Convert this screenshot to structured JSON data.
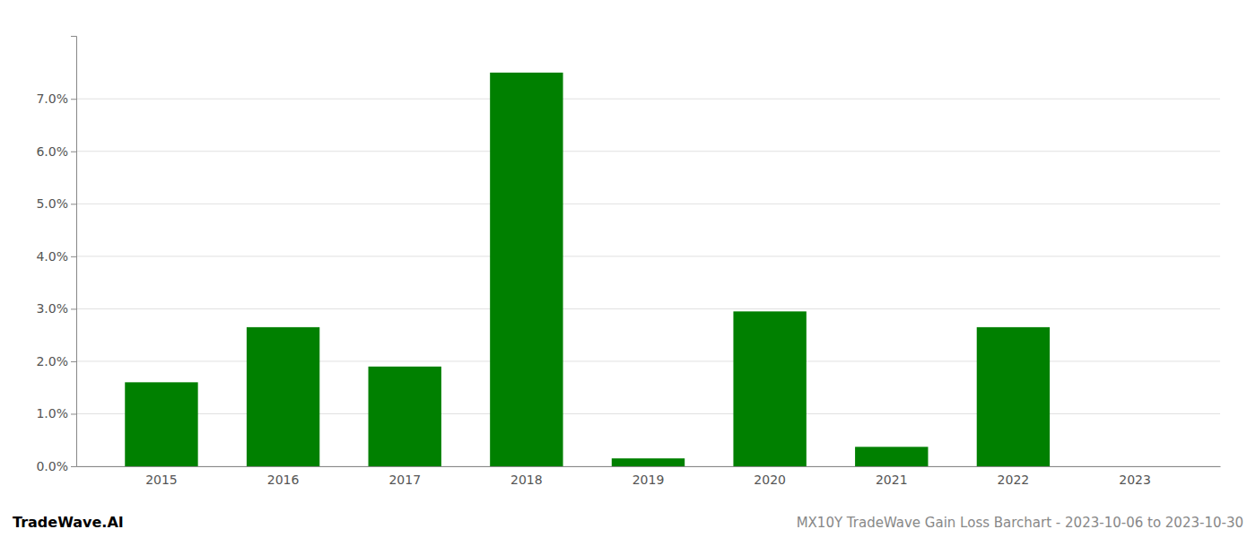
{
  "chart_data": {
    "type": "bar",
    "title": "MX10Y TradeWave Gain Loss Barchart - 2023-10-06 to 2023-10-30",
    "annotations": [
      "TradeWave.AI"
    ],
    "categories": [
      "2015",
      "2016",
      "2017",
      "2018",
      "2019",
      "2020",
      "2021",
      "2022",
      "2023"
    ],
    "values": [
      0.016,
      0.0265,
      0.019,
      0.075,
      0.0015,
      0.0295,
      0.0037,
      0.0265,
      0.0
    ],
    "color": "#008000",
    "ylim": [
      0,
      0.082
    ],
    "yticks": [
      {
        "value": 0.0,
        "label": "0.0%"
      },
      {
        "value": 0.01,
        "label": "1.0%"
      },
      {
        "value": 0.02,
        "label": "2.0%"
      },
      {
        "value": 0.03,
        "label": "3.0%"
      },
      {
        "value": 0.04,
        "label": "4.0%"
      },
      {
        "value": 0.05,
        "label": "5.0%"
      },
      {
        "value": 0.06,
        "label": "6.0%"
      },
      {
        "value": 0.07,
        "label": "7.0%"
      }
    ],
    "grid": true
  }
}
